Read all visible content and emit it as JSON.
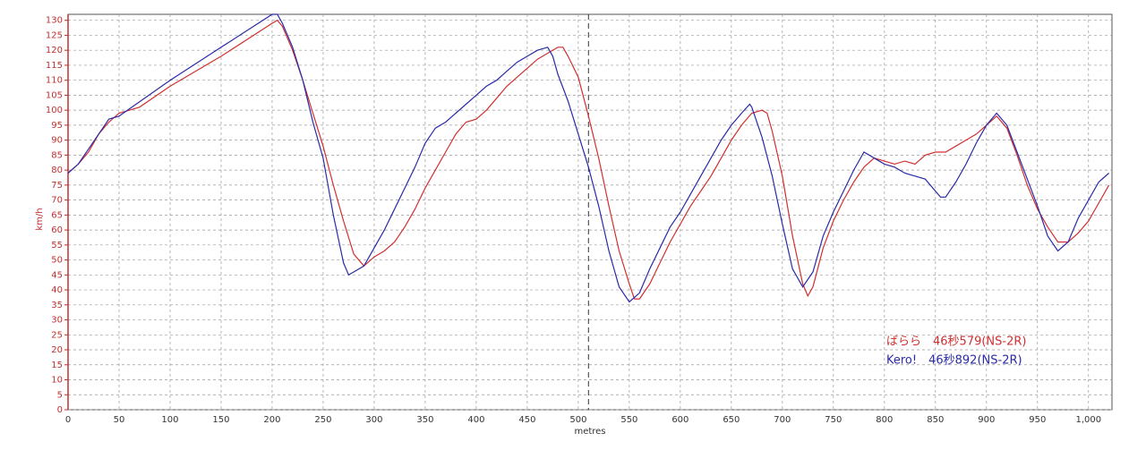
{
  "chart_data": {
    "type": "line",
    "y_label": "km/h",
    "x_label": "metres",
    "xlim": [
      0,
      1023
    ],
    "ylim": [
      0,
      132
    ],
    "xticks": [
      0,
      50,
      100,
      150,
      200,
      250,
      300,
      350,
      400,
      450,
      500,
      550,
      600,
      650,
      700,
      750,
      800,
      850,
      900,
      950,
      {
        "value": 1000,
        "label": "1,000"
      }
    ],
    "yticks": [
      0,
      5,
      10,
      15,
      20,
      25,
      30,
      35,
      40,
      45,
      50,
      55,
      60,
      65,
      70,
      75,
      80,
      85,
      90,
      95,
      100,
      105,
      110,
      115,
      120,
      125,
      130
    ],
    "grid": true,
    "cursor_x": 510,
    "series": [
      {
        "name": "ばらら　46秒579(NS-2R)",
        "color": "#d03030",
        "x": [
          0,
          10,
          20,
          30,
          40,
          50,
          60,
          70,
          100,
          150,
          200,
          205,
          210,
          220,
          230,
          240,
          250,
          260,
          270,
          280,
          290,
          300,
          310,
          320,
          330,
          340,
          350,
          360,
          370,
          380,
          390,
          400,
          410,
          420,
          430,
          440,
          450,
          460,
          470,
          480,
          485,
          490,
          500,
          510,
          520,
          530,
          540,
          550,
          555,
          560,
          570,
          580,
          590,
          600,
          610,
          620,
          630,
          640,
          650,
          660,
          670,
          680,
          685,
          690,
          700,
          710,
          720,
          725,
          730,
          740,
          750,
          760,
          770,
          780,
          790,
          800,
          810,
          820,
          830,
          840,
          850,
          860,
          870,
          880,
          890,
          900,
          910,
          920,
          930,
          940,
          950,
          960,
          970,
          980,
          990,
          1000,
          1010,
          1020
        ],
        "values": [
          79,
          82,
          86,
          92,
          96,
          99,
          100,
          101,
          108,
          118,
          129,
          130,
          128,
          120,
          110,
          99,
          88,
          75,
          63,
          52,
          48,
          51,
          53,
          56,
          61,
          67,
          74,
          80,
          86,
          92,
          96,
          97,
          100,
          104,
          108,
          111,
          114,
          117,
          119,
          121,
          121,
          118,
          111,
          98,
          84,
          68,
          53,
          42,
          37,
          37,
          42,
          49,
          56,
          62,
          68,
          73,
          78,
          84,
          90,
          95,
          99,
          100,
          99,
          93,
          78,
          58,
          42,
          38,
          41,
          54,
          63,
          70,
          76,
          81,
          84,
          83,
          82,
          83,
          82,
          85,
          86,
          86,
          88,
          90,
          92,
          95,
          98,
          94,
          85,
          75,
          67,
          61,
          56,
          56,
          59,
          63,
          69,
          75
        ]
      },
      {
        "name": "Kero!　46秒892(NS-2R)",
        "color": "#2a2aa8",
        "x": [
          0,
          10,
          20,
          30,
          40,
          50,
          100,
          150,
          200,
          205,
          210,
          220,
          230,
          240,
          250,
          260,
          270,
          275,
          280,
          290,
          300,
          310,
          320,
          330,
          340,
          350,
          360,
          370,
          380,
          390,
          400,
          410,
          420,
          430,
          440,
          450,
          460,
          470,
          475,
          480,
          490,
          500,
          510,
          520,
          530,
          540,
          550,
          560,
          570,
          580,
          590,
          600,
          610,
          620,
          630,
          640,
          650,
          660,
          668,
          670,
          680,
          690,
          700,
          710,
          720,
          730,
          740,
          750,
          760,
          770,
          780,
          790,
          800,
          810,
          820,
          830,
          840,
          850,
          855,
          860,
          870,
          880,
          890,
          900,
          910,
          920,
          930,
          940,
          950,
          960,
          970,
          980,
          990,
          1000,
          1010,
          1020
        ],
        "values": [
          79,
          82,
          87,
          92,
          97,
          98,
          110,
          121,
          132,
          132,
          129,
          121,
          110,
          96,
          84,
          65,
          49,
          45,
          46,
          48,
          54,
          60,
          67,
          74,
          81,
          89,
          94,
          96,
          99,
          102,
          105,
          108,
          110,
          113,
          116,
          118,
          120,
          121,
          118,
          112,
          103,
          92,
          81,
          68,
          53,
          41,
          36,
          39,
          47,
          54,
          61,
          66,
          72,
          78,
          84,
          90,
          95,
          99,
          102,
          101,
          91,
          78,
          62,
          47,
          41,
          46,
          58,
          66,
          73,
          80,
          86,
          84,
          82,
          81,
          79,
          78,
          77,
          73,
          71,
          71,
          76,
          82,
          89,
          95,
          99,
          95,
          86,
          77,
          68,
          58,
          53,
          56,
          64,
          70,
          76,
          79
        ]
      }
    ]
  }
}
